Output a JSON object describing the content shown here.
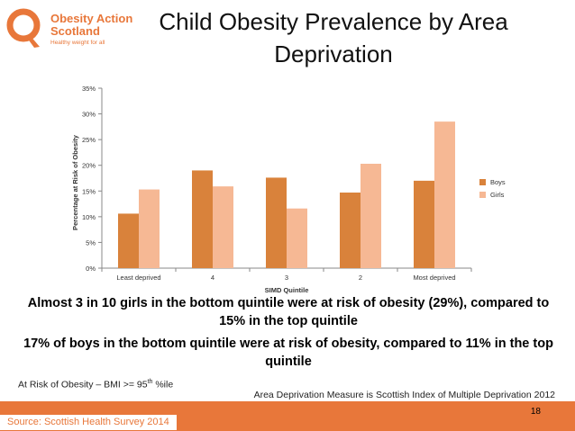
{
  "logo": {
    "line1": "Obesity Action",
    "line2": "Scotland",
    "tagline": "Healthy weight for all"
  },
  "slide": {
    "title": "Child Obesity Prevalence by Area Deprivation",
    "summary1": "Almost 3 in 10 girls in the bottom quintile were at risk of obesity (29%), compared to 15% in the top quintile",
    "summary2": "17% of boys in the bottom quintile were at risk of obesity, compared to 11% in the top quintile",
    "note_bmi_prefix": "At Risk of Obesity – BMI >= 95",
    "note_bmi_sup": "th",
    "note_bmi_suffix": " %ile",
    "note_area": "Area Deprivation Measure is Scottish Index of Multiple Deprivation 2012",
    "page_number": "18",
    "source": "Source: Scottish Health Survey 2014"
  },
  "colors": {
    "boys": "#d9823b",
    "girls": "#f6b894",
    "accent": "#e8773a",
    "axis": "#888888",
    "text": "#333333"
  },
  "chart_data": {
    "type": "bar",
    "title": "",
    "xlabel": "SIMD Quintile",
    "ylabel": "Percentage at Risk of Obesity",
    "categories": [
      "Least deprived",
      "4",
      "3",
      "2",
      "Most deprived"
    ],
    "series": [
      {
        "name": "Boys",
        "values": [
          10.6,
          19.0,
          17.6,
          14.7,
          17.0
        ]
      },
      {
        "name": "Girls",
        "values": [
          15.3,
          15.9,
          11.6,
          20.3,
          28.5
        ]
      }
    ],
    "ylim": [
      0,
      35
    ],
    "yticks": [
      0,
      5,
      10,
      15,
      20,
      25,
      30,
      35
    ],
    "ytick_labels": [
      "0%",
      "5%",
      "10%",
      "15%",
      "20%",
      "25%",
      "30%",
      "35%"
    ],
    "grid": false,
    "legend": "right"
  }
}
